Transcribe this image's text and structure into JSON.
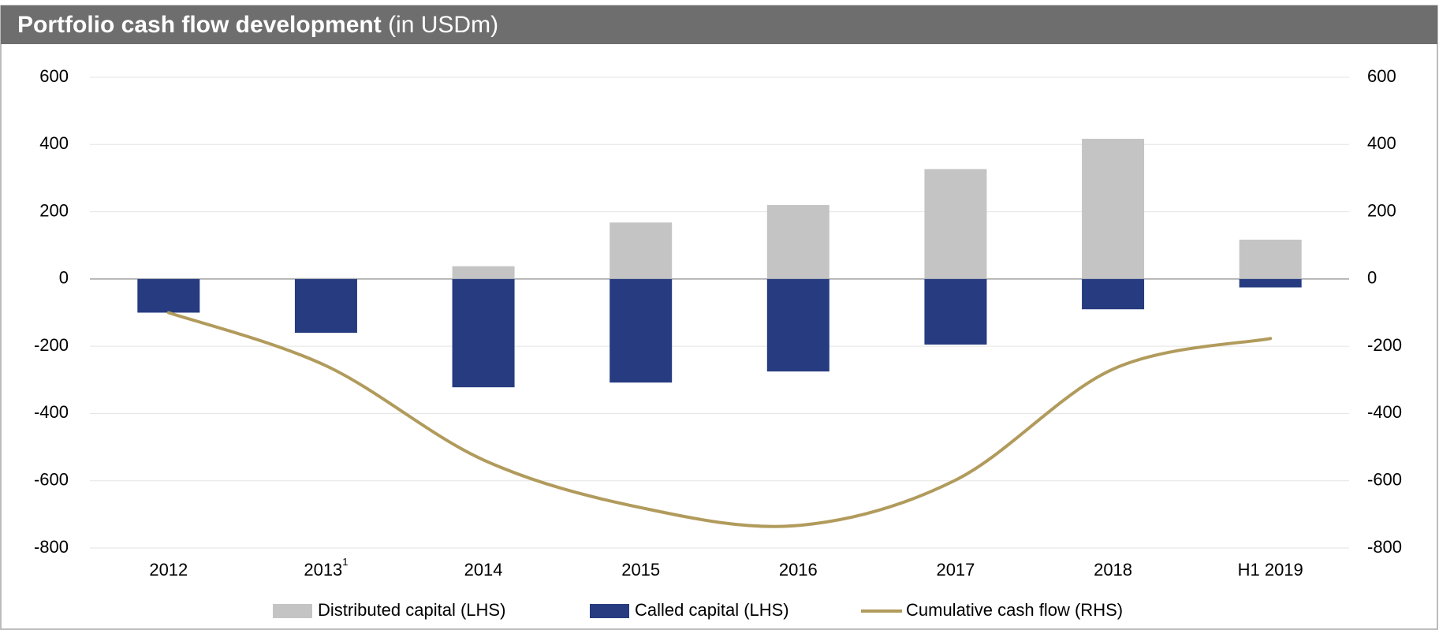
{
  "chart_data": {
    "type": "bar",
    "title": "Portfolio cash flow development",
    "subtitle": "(in USDm)",
    "categories": [
      "2012",
      "2013",
      "2014",
      "2015",
      "2016",
      "2017",
      "2018",
      "H1 2019"
    ],
    "category_notes": [
      null,
      "1",
      null,
      null,
      null,
      null,
      null,
      null
    ],
    "series": [
      {
        "name": "Distributed capital (LHS)",
        "color": "#c4c4c4",
        "type": "bar",
        "values": [
          0,
          3,
          38,
          168,
          220,
          327,
          417,
          117
        ]
      },
      {
        "name": "Called capital (LHS)",
        "color": "#263b80",
        "type": "bar",
        "values": [
          -100,
          -160,
          -322,
          -308,
          -275,
          -195,
          -90,
          -25
        ]
      },
      {
        "name": "Cumulative cash flow (RHS)",
        "color": "#b19b5c",
        "type": "line",
        "axis": "y2",
        "values": [
          -100,
          -258,
          -538,
          -680,
          -733,
          -598,
          -268,
          -177
        ]
      }
    ],
    "stacked": true,
    "ylim": [
      -800,
      600
    ],
    "yticks": [
      -800,
      -600,
      -400,
      -200,
      0,
      200,
      400,
      600
    ],
    "y2lim": [
      -800,
      600
    ],
    "y2ticks": [
      -800,
      -600,
      -400,
      -200,
      0,
      200,
      400,
      600
    ],
    "grid": true,
    "legend": "bottom"
  }
}
